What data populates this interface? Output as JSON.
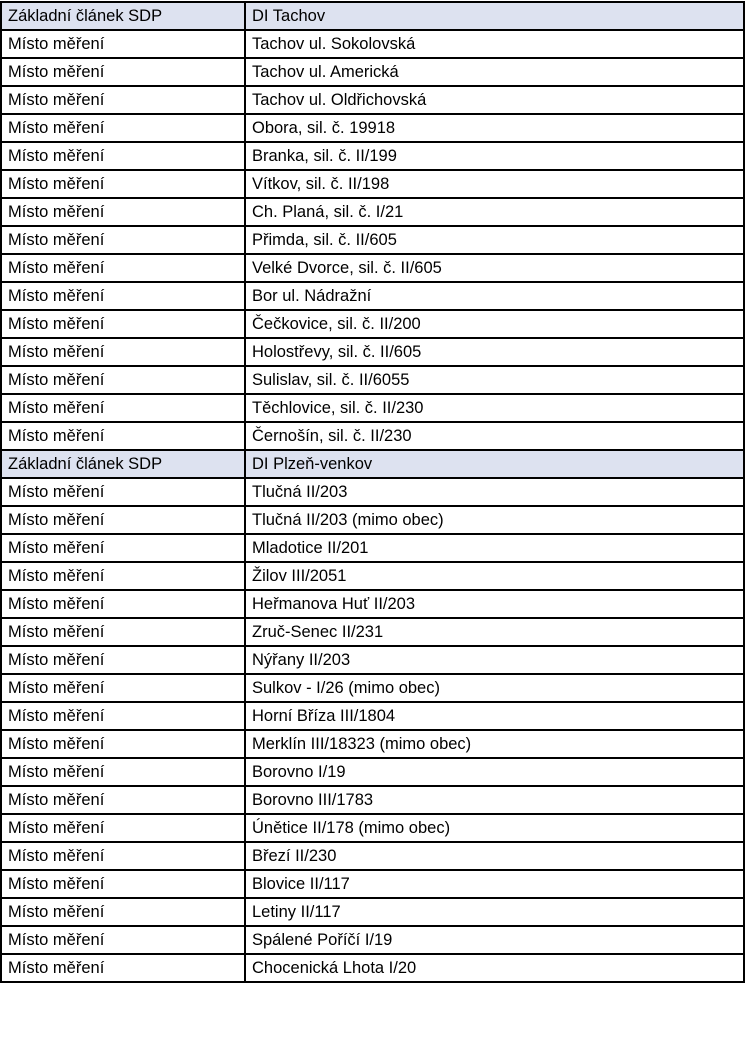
{
  "colors": {
    "section_header_bg": "#dde2f0",
    "border": "#000000"
  },
  "sections": [
    {
      "label": "Základní článek SDP",
      "name": "DI Tachov",
      "rows": [
        {
          "label": "Místo měření",
          "value": "Tachov ul. Sokolovská"
        },
        {
          "label": "Místo měření",
          "value": "Tachov ul. Americká"
        },
        {
          "label": "Místo měření",
          "value": "Tachov ul. Oldřichovská"
        },
        {
          "label": "Místo měření",
          "value": "Obora, sil. č. 19918"
        },
        {
          "label": "Místo měření",
          "value": "Branka, sil. č. II/199"
        },
        {
          "label": "Místo měření",
          "value": "Vítkov, sil. č. II/198"
        },
        {
          "label": "Místo měření",
          "value": "Ch. Planá, sil. č. I/21"
        },
        {
          "label": "Místo měření",
          "value": "Přimda, sil. č. II/605"
        },
        {
          "label": "Místo měření",
          "value": "Velké Dvorce, sil. č. II/605"
        },
        {
          "label": "Místo měření",
          "value": "Bor ul. Nádražní"
        },
        {
          "label": "Místo měření",
          "value": "Čečkovice, sil. č. II/200"
        },
        {
          "label": "Místo měření",
          "value": "Holostřevy, sil. č. II/605"
        },
        {
          "label": "Místo měření",
          "value": "Sulislav, sil. č. II/6055"
        },
        {
          "label": "Místo měření",
          "value": "Těchlovice, sil. č. II/230"
        },
        {
          "label": "Místo měření",
          "value": "Černošín, sil. č. II/230"
        }
      ]
    },
    {
      "label": "Základní článek SDP",
      "name": "DI Plzeň-venkov",
      "rows": [
        {
          "label": "Místo měření",
          "value": "Tlučná II/203"
        },
        {
          "label": "Místo měření",
          "value": "Tlučná II/203 (mimo obec)"
        },
        {
          "label": "Místo měření",
          "value": "Mladotice II/201"
        },
        {
          "label": "Místo měření",
          "value": "Žilov III/2051"
        },
        {
          "label": "Místo měření",
          "value": "Heřmanova Huť II/203"
        },
        {
          "label": "Místo měření",
          "value": "Zruč-Senec II/231"
        },
        {
          "label": "Místo měření",
          "value": "Nýřany II/203"
        },
        {
          "label": "Místo měření",
          "value": "Sulkov - I/26 (mimo obec)"
        },
        {
          "label": "Místo měření",
          "value": "Horní Bříza III/1804"
        },
        {
          "label": "Místo měření",
          "value": "Merklín III/18323 (mimo obec)"
        },
        {
          "label": "Místo měření",
          "value": "Borovno I/19"
        },
        {
          "label": "Místo měření",
          "value": "Borovno III/1783"
        },
        {
          "label": "Místo měření",
          "value": "Únětice II/178 (mimo obec)"
        },
        {
          "label": "Místo měření",
          "value": "Březí II/230"
        },
        {
          "label": "Místo měření",
          "value": "Blovice II/117"
        },
        {
          "label": "Místo měření",
          "value": "Letiny II/117"
        },
        {
          "label": "Místo měření",
          "value": "Spálené Poříčí I/19"
        },
        {
          "label": "Místo měření",
          "value": "Chocenická Lhota I/20"
        }
      ]
    }
  ]
}
